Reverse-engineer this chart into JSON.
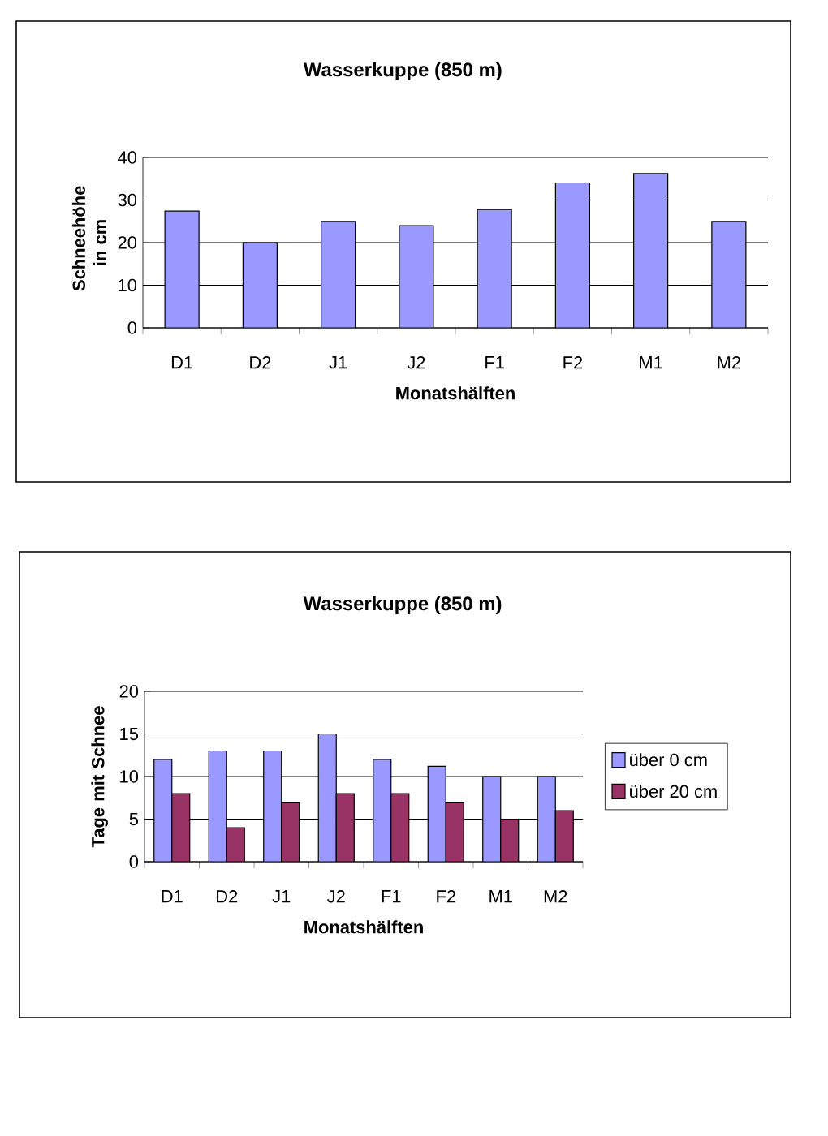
{
  "chart_data": [
    {
      "type": "bar",
      "title": "Wasserkuppe (850 m)",
      "xlabel": "Monatshälften",
      "ylabel": "Schneehöhe in cm",
      "categories": [
        "D1",
        "D2",
        "J1",
        "J2",
        "F1",
        "F2",
        "M1",
        "M2"
      ],
      "values": [
        27.4,
        20,
        25,
        24,
        27.8,
        34,
        36.2,
        25
      ],
      "color": "#9999ff",
      "ylim": [
        0,
        40
      ],
      "yticks": [
        0,
        10,
        20,
        30,
        40
      ],
      "grid": "y"
    },
    {
      "type": "bar",
      "title": "Wasserkuppe (850 m)",
      "xlabel": "Monatshälften",
      "ylabel": "Tage mit Schnee",
      "categories": [
        "D1",
        "D2",
        "J1",
        "J2",
        "F1",
        "F2",
        "M1",
        "M2"
      ],
      "series": [
        {
          "name": "über 0 cm",
          "color": "#9999ff",
          "values": [
            12,
            13,
            13,
            15,
            12,
            11.2,
            10,
            10
          ]
        },
        {
          "name": "über 20 cm",
          "color": "#993366",
          "values": [
            8,
            4,
            7,
            8,
            8,
            7,
            5,
            6
          ]
        }
      ],
      "ylim": [
        0,
        20
      ],
      "yticks": [
        0,
        5,
        10,
        15,
        20
      ],
      "grid": "y",
      "legend": "right"
    }
  ]
}
